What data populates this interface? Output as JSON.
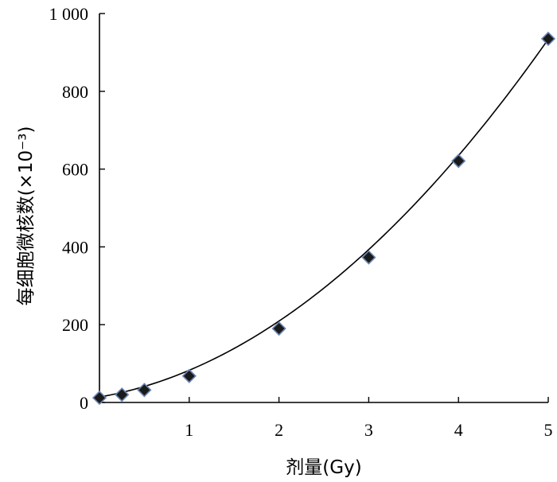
{
  "chart_data": {
    "type": "scatter",
    "xlabel": "剂量(Gy)",
    "ylabel": "每细胞微核数(×10⁻³)",
    "xlim": [
      0,
      5
    ],
    "ylim": [
      0,
      1000
    ],
    "x_ticks": [
      {
        "value": 1,
        "label": "1"
      },
      {
        "value": 2,
        "label": "2"
      },
      {
        "value": 3,
        "label": "3"
      },
      {
        "value": 4,
        "label": "4"
      },
      {
        "value": 5,
        "label": "5"
      }
    ],
    "y_ticks": [
      {
        "value": 0,
        "label": "0"
      },
      {
        "value": 200,
        "label": "200"
      },
      {
        "value": 400,
        "label": "400"
      },
      {
        "value": 600,
        "label": "600"
      },
      {
        "value": 800,
        "label": "800"
      },
      {
        "value": 1000,
        "label": "1 000"
      }
    ],
    "grid": false,
    "legend": "none",
    "series": [
      {
        "marker": "diamond",
        "marker_fill": "#1a1a1a",
        "marker_edge": "#6b86b3",
        "x": [
          0,
          0.25,
          0.5,
          1,
          2,
          3,
          4,
          5
        ],
        "y": [
          12,
          20,
          32,
          68,
          190,
          373,
          621,
          935
        ]
      }
    ],
    "fit_curve": {
      "form": "quadratic",
      "coefficients": {
        "c": 14,
        "a": 40,
        "b": 28.8
      }
    }
  }
}
